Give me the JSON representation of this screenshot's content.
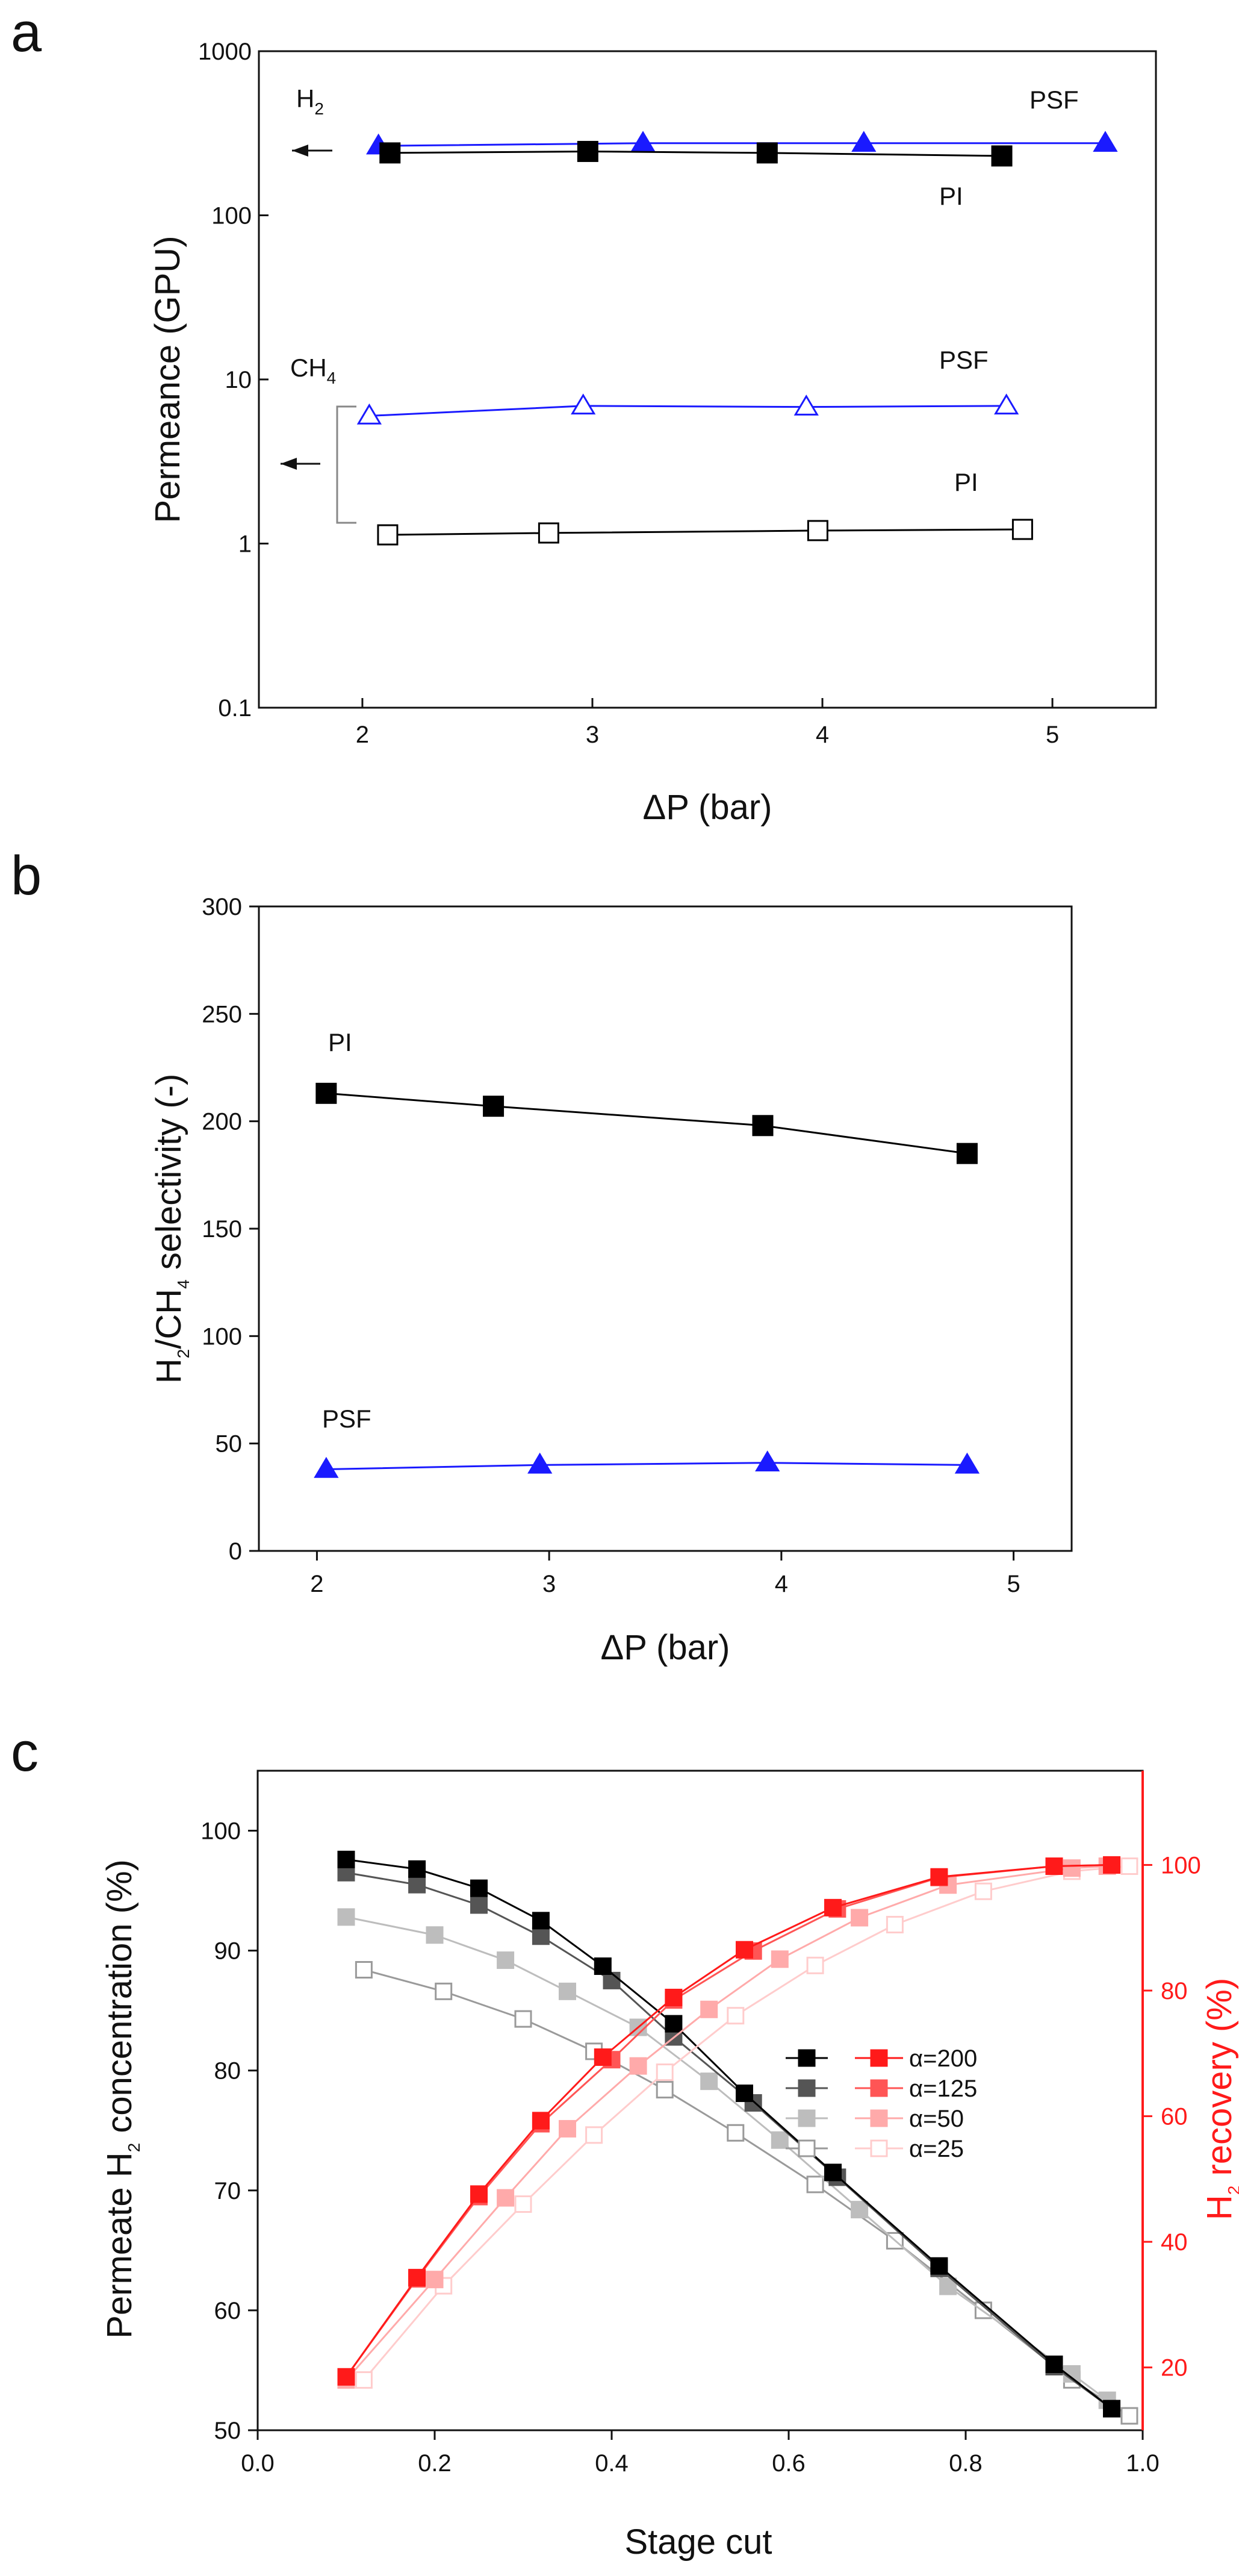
{
  "chart_data": [
    {
      "panel": "a",
      "type": "line",
      "yscale": "log",
      "xlabel": "ΔP (bar)",
      "ylabel": "Permeance (GPU)",
      "xlim": [
        1.55,
        5.45
      ],
      "ylim": [
        0.1,
        1000
      ],
      "xticks": [
        "2",
        "3",
        "4",
        "5"
      ],
      "yticks": [
        "0.1",
        "1",
        "10",
        "100",
        "1000"
      ],
      "annotations": {
        "h2": "H",
        "h2_sub": "2",
        "ch4": "CH",
        "ch4_sub": "4"
      },
      "series": [
        {
          "name": "H2 PSF",
          "label": "PSF",
          "color": "#1a1aff",
          "marker": "triangle",
          "filled": true,
          "x": [
            2.07,
            3.22,
            4.18,
            5.23
          ],
          "y": [
            265,
            275,
            275,
            275
          ]
        },
        {
          "name": "H2 PI",
          "label": "PI",
          "color": "#000000",
          "marker": "square",
          "filled": true,
          "x": [
            2.12,
            2.98,
            3.76,
            4.78
          ],
          "y": [
            240,
            245,
            240,
            230
          ]
        },
        {
          "name": "CH4 PSF",
          "label": "PSF",
          "color": "#1a1aff",
          "marker": "triangle",
          "filled": false,
          "x": [
            2.03,
            2.96,
            3.93,
            4.8
          ],
          "y": [
            6.0,
            6.9,
            6.8,
            6.9
          ]
        },
        {
          "name": "CH4 PI",
          "label": "PI",
          "color": "#000000",
          "marker": "square",
          "filled": false,
          "x": [
            2.11,
            2.81,
            3.98,
            4.87
          ],
          "y": [
            1.13,
            1.16,
            1.2,
            1.22
          ]
        }
      ]
    },
    {
      "panel": "b",
      "type": "line",
      "xlabel": "ΔP (bar)",
      "ylabel": "H2/CH4 selectivity (-)",
      "ylabel_parts": {
        "h": "H",
        "s2": "2",
        "ch": "/CH",
        "s4": "4",
        "rest": " selectivity (-)"
      },
      "xlim": [
        1.75,
        5.25
      ],
      "ylim": [
        0,
        300
      ],
      "xticks": [
        "2",
        "3",
        "4",
        "5"
      ],
      "yticks": [
        "0",
        "50",
        "100",
        "150",
        "200",
        "250",
        "300"
      ],
      "series": [
        {
          "name": "PI",
          "label": "PI",
          "color": "#000000",
          "marker": "square",
          "filled": true,
          "x": [
            2.04,
            2.76,
            3.92,
            4.8
          ],
          "y": [
            213,
            207,
            198,
            185
          ]
        },
        {
          "name": "PSF",
          "label": "PSF",
          "color": "#1a1aff",
          "marker": "triangle",
          "filled": true,
          "x": [
            2.04,
            2.96,
            3.94,
            4.8
          ],
          "y": [
            38,
            40,
            41,
            40
          ]
        }
      ]
    },
    {
      "panel": "c",
      "type": "line",
      "xlabel": "Stage cut",
      "ylabel": "Permeate H2 concentration (%)",
      "ylabel_parts": {
        "pre": "Permeate H",
        "sub": "2",
        "post": " concentration (%)"
      },
      "ylabel_right": "H2 recovery (%)",
      "ylabel_right_parts": {
        "pre": "H",
        "sub": "2",
        "post": " recovery (%)"
      },
      "xlim": [
        0.0,
        1.0
      ],
      "ylim": [
        50,
        105
      ],
      "ylim_right": [
        10,
        115
      ],
      "xticks": [
        "0.0",
        "0.2",
        "0.4",
        "0.6",
        "0.8",
        "1.0"
      ],
      "yticks": [
        "50",
        "60",
        "70",
        "80",
        "90",
        "100"
      ],
      "yticks_right": [
        "20",
        "40",
        "60",
        "80",
        "100"
      ],
      "x": [
        0.1,
        0.18,
        0.25,
        0.32,
        0.39,
        0.47,
        0.55,
        0.65,
        0.77,
        0.9,
        0.965
      ],
      "legend": {
        "position": "center-right",
        "entries": [
          {
            "label": "α=200",
            "conc_color": "#000000",
            "rec_color": "#ff1a1a",
            "filled": true,
            "opacity": 1.0
          },
          {
            "label": "α=125",
            "conc_color": "#555555",
            "rec_color": "#ff5555",
            "filled": true,
            "opacity": 1.0
          },
          {
            "label": "α=50",
            "conc_color": "#bdbdbd",
            "rec_color": "#ffaaaa",
            "filled": true,
            "opacity": 1.0
          },
          {
            "label": "α=25",
            "conc_color": "#9a9a9a",
            "rec_color": "#ffcccc",
            "filled": false,
            "opacity": 1.0
          }
        ]
      },
      "concentration_series": [
        {
          "name": "α=200",
          "color": "#000000",
          "filled": true,
          "x": [
            0.1,
            0.18,
            0.25,
            0.32,
            0.39,
            0.47,
            0.55,
            0.65,
            0.77,
            0.9,
            0.965
          ],
          "y": [
            97.6,
            96.8,
            95.2,
            92.5,
            88.7,
            83.9,
            78.1,
            71.5,
            63.7,
            55.5,
            51.8
          ]
        },
        {
          "name": "α=125",
          "color": "#555555",
          "filled": true,
          "x": [
            0.1,
            0.18,
            0.25,
            0.32,
            0.4,
            0.47,
            0.56,
            0.655,
            0.77,
            0.9,
            0.965
          ],
          "y": [
            96.5,
            95.5,
            93.8,
            91.2,
            87.5,
            82.8,
            77.3,
            71.1,
            63.5,
            55.3,
            51.8
          ]
        },
        {
          "name": "α=50",
          "color": "#bdbdbd",
          "filled": true,
          "x": [
            0.1,
            0.2,
            0.28,
            0.35,
            0.43,
            0.51,
            0.59,
            0.68,
            0.78,
            0.92,
            0.96
          ],
          "y": [
            92.8,
            91.3,
            89.2,
            86.6,
            83.6,
            79.1,
            74.2,
            68.4,
            62.0,
            54.7,
            52.5
          ]
        },
        {
          "name": "α=25",
          "color": "#9a9a9a",
          "filled": false,
          "x": [
            0.12,
            0.21,
            0.3,
            0.38,
            0.46,
            0.54,
            0.63,
            0.72,
            0.82,
            0.92,
            0.985
          ],
          "y": [
            88.4,
            86.6,
            84.3,
            81.6,
            78.4,
            74.8,
            70.5,
            65.8,
            60.0,
            54.2,
            51.2
          ]
        }
      ],
      "recovery_series": [
        {
          "name": "α=200",
          "color": "#ff1a1a",
          "filled": true,
          "x": [
            0.1,
            0.18,
            0.25,
            0.32,
            0.39,
            0.47,
            0.55,
            0.65,
            0.77,
            0.9,
            0.965
          ],
          "y": [
            18.5,
            34.3,
            47.6,
            59.3,
            69.4,
            78.9,
            86.5,
            93.2,
            98.1,
            99.8,
            100.0
          ]
        },
        {
          "name": "α=125",
          "color": "#ff5555",
          "filled": true,
          "x": [
            0.1,
            0.18,
            0.25,
            0.32,
            0.4,
            0.47,
            0.56,
            0.655,
            0.77,
            0.9,
            0.965
          ],
          "y": [
            18.5,
            34.1,
            47.2,
            58.8,
            69.0,
            78.5,
            86.3,
            93.0,
            98.0,
            99.8,
            100.0
          ]
        },
        {
          "name": "α=50",
          "color": "#ffaaaa",
          "filled": true,
          "x": [
            0.1,
            0.2,
            0.28,
            0.35,
            0.43,
            0.51,
            0.59,
            0.68,
            0.78,
            0.92,
            0.96
          ],
          "y": [
            18.0,
            34.0,
            47.0,
            58.0,
            68.0,
            77.0,
            85.0,
            91.6,
            96.8,
            99.5,
            99.8
          ]
        },
        {
          "name": "α=25",
          "color": "#ffcccc",
          "filled": false,
          "x": [
            0.12,
            0.21,
            0.3,
            0.38,
            0.46,
            0.54,
            0.63,
            0.72,
            0.82,
            0.92,
            0.985
          ],
          "y": [
            18.0,
            33.0,
            46.0,
            57.0,
            67.0,
            76.0,
            84.0,
            90.5,
            95.8,
            99.0,
            99.8
          ]
        }
      ]
    }
  ],
  "panels": {
    "a": "a",
    "b": "b",
    "c": "c"
  }
}
